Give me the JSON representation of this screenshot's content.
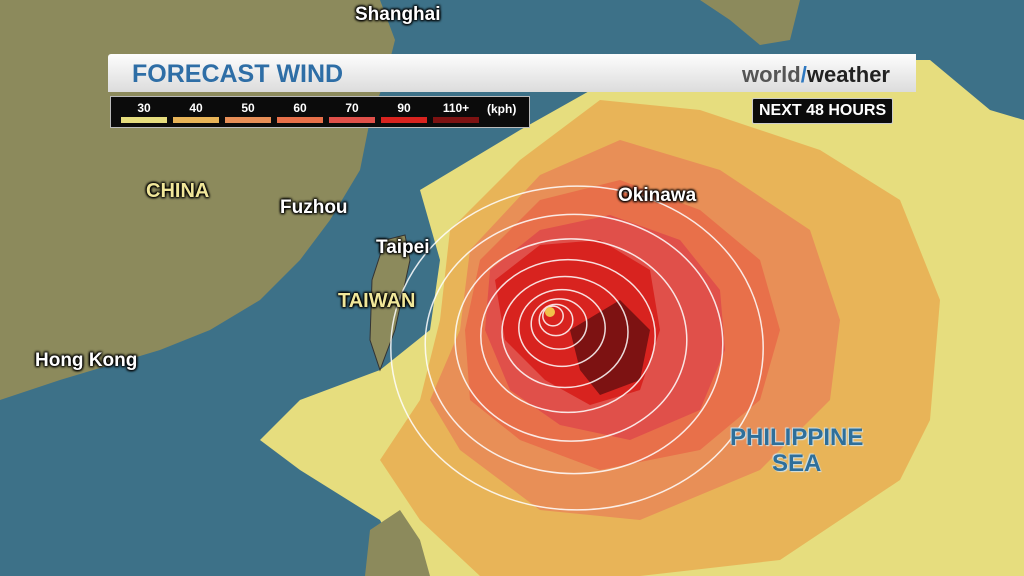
{
  "header": {
    "title": "FORECAST WIND",
    "brand_world": "world",
    "brand_slash": "/",
    "brand_weather": "weather",
    "period": "NEXT 48 HOURS"
  },
  "legend": {
    "unit": "(kph)",
    "items": [
      {
        "label": "30",
        "color": "#e6dd7e"
      },
      {
        "label": "40",
        "color": "#e8b458"
      },
      {
        "label": "50",
        "color": "#e88f57"
      },
      {
        "label": "60",
        "color": "#e8704a"
      },
      {
        "label": "70",
        "color": "#e0504a"
      },
      {
        "label": "90",
        "color": "#d8231f"
      },
      {
        "label": "110+",
        "color": "#7d1212"
      }
    ]
  },
  "map": {
    "colors": {
      "ocean": "#3d7188",
      "land": "#8c8a5c"
    },
    "labels": {
      "shanghai": "Shanghai",
      "china": "CHINA",
      "fuzhou": "Fuzhou",
      "taipei": "Taipei",
      "taiwan": "TAIWAN",
      "hong_kong": "Hong Kong",
      "okinawa": "Okinawa",
      "sea1": "PHILIPPINE",
      "sea2": "SEA"
    }
  }
}
